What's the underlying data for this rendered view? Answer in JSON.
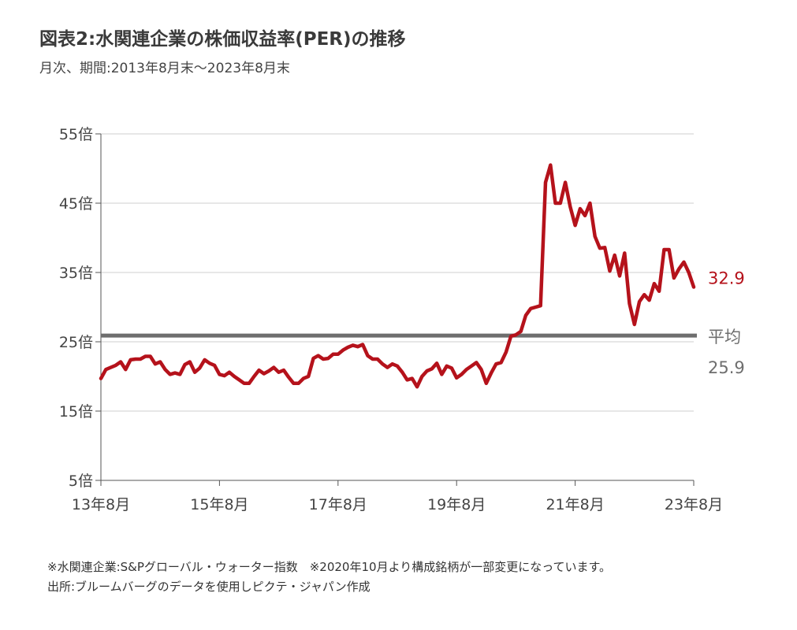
{
  "header": {
    "title": "図表2:水関連企業の株価収益率(PER)の推移",
    "subtitle": "月次、期間:2013年8月末〜2023年8月末"
  },
  "footer": {
    "note1": "※水関連企業:S&Pグローバル・ウォーター指数　※2020年10月より構成銘柄が一部変更になっています。",
    "note2": "出所:ブルームバーグのデータを使用しピクテ・ジャパン作成"
  },
  "chart_data": {
    "type": "line",
    "title": "図表2:水関連企業の株価収益率(PER)の推移",
    "ylim": [
      5,
      55
    ],
    "xlim": [
      0,
      120
    ],
    "y_ticks": [
      55,
      45,
      35,
      25,
      15,
      5
    ],
    "y_tick_labels": [
      "55倍",
      "45倍",
      "35倍",
      "25倍",
      "15倍",
      "5倍"
    ],
    "x_ticks": [
      0,
      24,
      48,
      72,
      96,
      120
    ],
    "x_tick_labels": [
      "13年8月",
      "15年8月",
      "17年8月",
      "19年8月",
      "21年8月",
      "23年8月"
    ],
    "grid": true,
    "series": [
      {
        "name": "PER",
        "color": "#b5121b",
        "x": [
          0,
          1,
          2,
          3,
          4,
          5,
          6,
          7,
          8,
          9,
          10,
          11,
          12,
          13,
          14,
          15,
          16,
          17,
          18,
          19,
          20,
          21,
          22,
          23,
          24,
          25,
          26,
          27,
          28,
          29,
          30,
          31,
          32,
          33,
          34,
          35,
          36,
          37,
          38,
          39,
          40,
          41,
          42,
          43,
          44,
          45,
          46,
          47,
          48,
          49,
          50,
          51,
          52,
          53,
          54,
          55,
          56,
          57,
          58,
          59,
          60,
          61,
          62,
          63,
          64,
          65,
          66,
          67,
          68,
          69,
          70,
          71,
          72,
          73,
          74,
          75,
          76,
          77,
          78,
          79,
          80,
          81,
          82,
          83,
          84,
          85,
          86,
          87,
          88,
          89,
          90,
          91,
          92,
          93,
          94,
          95,
          96,
          97,
          98,
          99,
          100,
          101,
          102,
          103,
          104,
          105,
          106,
          107,
          108,
          109,
          110,
          111,
          112,
          113,
          114,
          115,
          116,
          117,
          118,
          119,
          120
        ],
        "values": [
          19.7,
          21,
          21.3,
          21.6,
          22.1,
          21,
          22.4,
          22.5,
          22.5,
          22.9,
          22.9,
          21.8,
          22.1,
          21,
          20.3,
          20.5,
          20.3,
          21.7,
          22.1,
          20.6,
          21.2,
          22.4,
          21.9,
          21.6,
          20.3,
          20.1,
          20.6,
          20,
          19.5,
          19,
          19,
          20,
          20.9,
          20.4,
          20.8,
          21.3,
          20.6,
          20.9,
          19.9,
          19,
          19,
          19.7,
          20,
          22.6,
          23,
          22.5,
          22.6,
          23.2,
          23.2,
          23.8,
          24.2,
          24.5,
          24.3,
          24.6,
          23,
          22.5,
          22.5,
          21.8,
          21.3,
          21.8,
          21.5,
          20.6,
          19.5,
          19.7,
          18.5,
          20,
          20.8,
          21.1,
          21.9,
          20.3,
          21.5,
          21.2,
          19.8,
          20.3,
          21,
          21.5,
          22,
          21,
          19,
          20.5,
          21.8,
          22,
          23.5,
          25.8,
          26,
          26.5,
          28.8,
          29.8,
          30,
          30.2,
          48,
          50.5,
          45,
          45,
          48,
          44.5,
          41.8,
          44.2,
          43.2,
          45,
          40.2,
          38.5,
          38.6,
          35.2,
          37.5,
          34.5,
          37.8,
          30.5,
          27.5,
          30.8,
          31.8,
          31,
          33.4,
          32.3,
          38.3,
          38.3,
          34.2,
          35.5,
          36.5,
          35,
          32.9
        ]
      }
    ],
    "reference_lines": [
      {
        "name": "平均",
        "value": 25.9,
        "label_value": "25.9",
        "color": "#6e6e6e"
      }
    ],
    "end_label": {
      "value": "32.9",
      "color": "#b5121b"
    }
  }
}
